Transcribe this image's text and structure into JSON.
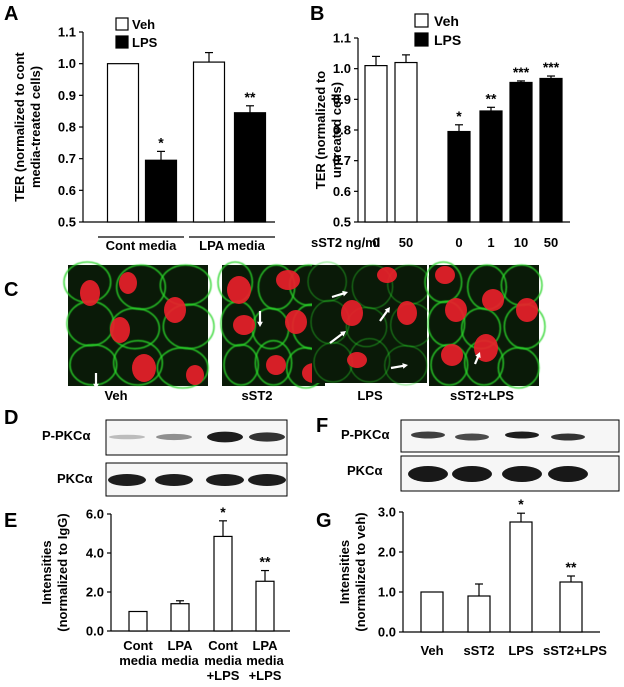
{
  "panel_letters": {
    "a": "A",
    "b": "B",
    "c": "C",
    "d": "D",
    "e": "E",
    "f": "F",
    "g": "G"
  },
  "colors": {
    "veh_fill": "#ffffff",
    "lps_fill": "#000000",
    "green_stain": "#2bd62b",
    "nucleus_red": "#e8202a",
    "micro_bg": "#0a1a08"
  },
  "panel_c": {
    "labels": [
      "Veh",
      "sST2",
      "LPS",
      "sST2+LPS"
    ],
    "arrow_icon": "arrow-icon"
  },
  "panel_d": {
    "band_labels": [
      "P-PKCα",
      "PKCα"
    ]
  },
  "panel_f": {
    "band_labels": [
      "P-PKCα",
      "PKCα"
    ]
  },
  "chart_data": [
    {
      "panel": "A",
      "type": "bar",
      "ylabel": "TER (normalized to cont media-treated cells)",
      "ylim": [
        0.5,
        1.1
      ],
      "yticks": [
        "0.5",
        "0.6",
        "0.7",
        "0.8",
        "0.9",
        "1.0",
        "1.1"
      ],
      "groups": [
        "Cont media",
        "LPA media"
      ],
      "legend": [
        "Veh",
        "LPS"
      ],
      "series": [
        {
          "name": "Veh",
          "values": [
            1.0,
            1.005
          ],
          "errors": [
            0,
            0.03
          ],
          "sig": [
            "",
            ""
          ]
        },
        {
          "name": "LPS",
          "values": [
            0.695,
            0.845
          ],
          "errors": [
            0.028,
            0.022
          ],
          "sig": [
            "*",
            "**"
          ]
        }
      ]
    },
    {
      "panel": "B",
      "type": "bar",
      "ylabel": "TER (normalized to untreated cells)",
      "ylim": [
        0.5,
        1.1
      ],
      "yticks": [
        "0.5",
        "0.6",
        "0.7",
        "0.8",
        "0.9",
        "1.0",
        "1.1"
      ],
      "xlabel": "sST2 ng/ml",
      "categories": [
        "0",
        "50",
        "0",
        "1",
        "10",
        "50"
      ],
      "legend": [
        "Veh",
        "LPS"
      ],
      "fills": [
        "Veh",
        "Veh",
        "LPS",
        "LPS",
        "LPS",
        "LPS"
      ],
      "values": [
        1.01,
        1.02,
        0.795,
        0.862,
        0.955,
        0.968
      ],
      "errors": [
        0.03,
        0.025,
        0.022,
        0.012,
        0.005,
        0.008
      ],
      "sig": [
        "",
        "",
        "*",
        "**",
        "***",
        "***"
      ]
    },
    {
      "panel": "E",
      "type": "bar",
      "ylabel": "Intensities (normalized to IgG)",
      "ylim": [
        0,
        6
      ],
      "yticks": [
        "0.0",
        "2.0",
        "4.0",
        "6.0"
      ],
      "categories": [
        [
          "Cont",
          "media"
        ],
        [
          "LPA",
          "media"
        ],
        [
          "Cont",
          "media",
          "+LPS"
        ],
        [
          "LPA",
          "media",
          "+LPS"
        ]
      ],
      "values": [
        1.0,
        1.4,
        4.85,
        2.55
      ],
      "errors": [
        0,
        0.15,
        0.8,
        0.55
      ],
      "sig": [
        "",
        "",
        "*",
        "**"
      ]
    },
    {
      "panel": "G",
      "type": "bar",
      "ylabel": "Intensities (normalized to veh)",
      "ylim": [
        0,
        3
      ],
      "yticks": [
        "0.0",
        "1.0",
        "2.0",
        "3.0"
      ],
      "categories": [
        "Veh",
        "sST2",
        "LPS",
        "sST2+LPS"
      ],
      "values": [
        1.0,
        0.9,
        2.75,
        1.25
      ],
      "errors": [
        0,
        0.3,
        0.22,
        0.15
      ],
      "sig": [
        "",
        "",
        "*",
        "**"
      ]
    }
  ]
}
